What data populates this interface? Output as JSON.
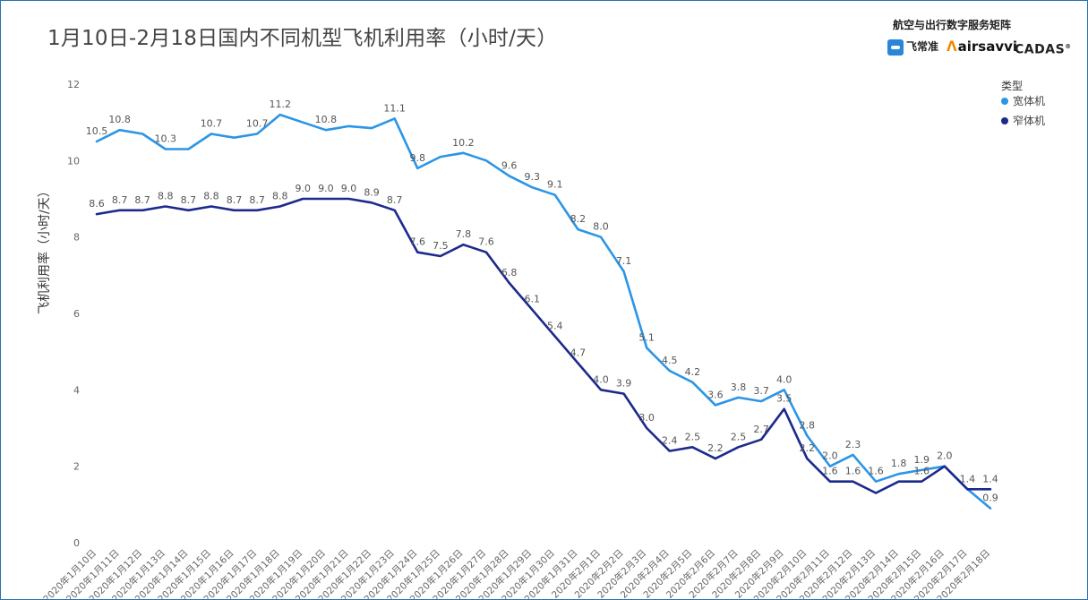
{
  "brand": {
    "title": "航空与出行数字服务矩阵",
    "logos": [
      "飞常准",
      "airsavvi",
      "CADAS"
    ]
  },
  "chart_data": {
    "type": "line",
    "title": "1月10日-2月18日国内不同机型飞机利用率（小时/天）",
    "ylabel": "飞机利用率（小时/天）",
    "xlabel": "",
    "ylim": [
      0,
      12
    ],
    "yticks": [
      0,
      2,
      4,
      6,
      8,
      10,
      12
    ],
    "grid": false,
    "legend": {
      "title": "类型",
      "placement": "top-right"
    },
    "categories": [
      "2020年1月10日",
      "2020年1月11日",
      "2020年1月12日",
      "2020年1月13日",
      "2020年1月14日",
      "2020年1月15日",
      "2020年1月16日",
      "2020年1月17日",
      "2020年1月18日",
      "2020年1月19日",
      "2020年1月20日",
      "2020年1月21日",
      "2020年1月22日",
      "2020年1月23日",
      "2020年1月24日",
      "2020年1月25日",
      "2020年1月26日",
      "2020年1月27日",
      "2020年1月28日",
      "2020年1月29日",
      "2020年1月30日",
      "2020年1月31日",
      "2020年2月1日",
      "2020年2月2日",
      "2020年2月3日",
      "2020年2月4日",
      "2020年2月5日",
      "2020年2月6日",
      "2020年2月7日",
      "2020年2月8日",
      "2020年2月9日",
      "2020年2月10日",
      "2020年2月11日",
      "2020年2月12日",
      "2020年2月13日",
      "2020年2月14日",
      "2020年2月15日",
      "2020年2月16日",
      "2020年2月17日",
      "2020年2月18日"
    ],
    "series": [
      {
        "name": "宽体机",
        "color": "#2b95e6",
        "values": [
          10.5,
          10.8,
          10.7,
          10.3,
          10.3,
          10.7,
          10.6,
          10.7,
          11.2,
          11.0,
          10.8,
          10.9,
          10.85,
          11.1,
          9.8,
          10.1,
          10.2,
          10.0,
          9.6,
          9.3,
          9.1,
          8.2,
          8.0,
          7.1,
          5.1,
          4.5,
          4.2,
          3.6,
          3.8,
          3.7,
          4.0,
          2.8,
          2.0,
          2.3,
          1.6,
          1.8,
          1.9,
          2.0,
          1.4,
          0.9
        ],
        "labels": [
          "10.5",
          "10.8",
          "",
          "10.3",
          "",
          "10.7",
          "",
          "10.7",
          "11.2",
          "",
          "10.8",
          "",
          "",
          "11.1",
          "9.8",
          "",
          "10.2",
          "",
          "9.6",
          "9.3",
          "9.1",
          "8.2",
          "8.0",
          "7.1",
          "5.1",
          "4.5",
          "4.2",
          "3.6",
          "3.8",
          "3.7",
          "4.0",
          "2.8",
          "2.0",
          "2.3",
          "1.6",
          "1.8",
          "1.9",
          "2.0",
          "",
          "0.9"
        ]
      },
      {
        "name": "窄体机",
        "color": "#1b2a8c",
        "values": [
          8.6,
          8.7,
          8.7,
          8.8,
          8.7,
          8.8,
          8.7,
          8.7,
          8.8,
          9.0,
          9.0,
          9.0,
          8.9,
          8.7,
          7.6,
          7.5,
          7.8,
          7.6,
          6.8,
          6.1,
          5.4,
          4.7,
          4.0,
          3.9,
          3.0,
          2.4,
          2.5,
          2.2,
          2.5,
          2.7,
          3.5,
          2.2,
          1.6,
          1.6,
          1.3,
          1.6,
          1.6,
          2.0,
          1.4,
          1.4
        ],
        "labels": [
          "8.6",
          "8.7",
          "8.7",
          "8.8",
          "8.7",
          "8.8",
          "8.7",
          "8.7",
          "8.8",
          "9.0",
          "9.0",
          "9.0",
          "8.9",
          "8.7",
          "7.6",
          "7.5",
          "7.8",
          "7.6",
          "6.8",
          "6.1",
          "5.4",
          "4.7",
          "4.0",
          "3.9",
          "3.0",
          "2.4",
          "2.5",
          "2.2",
          "2.5",
          "2.7",
          "3.5",
          "2.2",
          "1.6",
          "1.6",
          "",
          "",
          "1.6",
          "",
          "1.4",
          "1.4"
        ]
      }
    ]
  }
}
